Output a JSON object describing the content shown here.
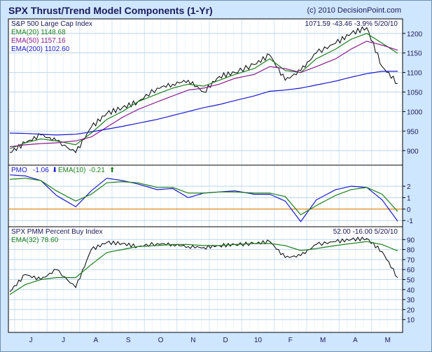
{
  "header": {
    "title": "SPX Thrust/Trend Model Components (1-Yr)",
    "copyright": "(c) 2010 DecisionPoint.com"
  },
  "x_months": [
    "J",
    "J",
    "A",
    "S",
    "O",
    "N",
    "D",
    "10",
    "F",
    "M",
    "A",
    "M"
  ],
  "panels": {
    "price": {
      "name": "S&P 500 Large Cap Index",
      "readout": "1071.59  -43.46  -3.9%  5/20/10",
      "legend": [
        {
          "label": "EMA(20)",
          "value": "1148.68",
          "color": "#1b7f1b"
        },
        {
          "label": "EMA(50)",
          "value": "1157.16",
          "color": "#8a1a8a"
        },
        {
          "label": "EMA(200)",
          "value": "1102.60",
          "color": "#1a1acc"
        }
      ],
      "yticks": [
        "900",
        "950",
        "1000",
        "1050",
        "1100",
        "1150",
        "1200"
      ]
    },
    "pmo": {
      "name": "PMO",
      "value": "-1.06",
      "arrow": "⬇",
      "ema_label": "EMA(10)",
      "ema_value": "-0.21",
      "ema_arrow": "⬆",
      "yticks": [
        "-1",
        "0",
        "1",
        "2"
      ]
    },
    "pmm": {
      "name": "SPX PMM Percent Buy Index",
      "readout": "52.00  -16.00  5/20/10",
      "ema_label": "EMA(32)",
      "ema_value": "78.60",
      "yticks": [
        "10",
        "20",
        "30",
        "40",
        "50",
        "60",
        "70",
        "80",
        "90"
      ]
    }
  },
  "chart_data": [
    {
      "type": "line",
      "title": "S&P 500 Large Cap Index",
      "x": [
        0,
        4,
        8,
        12,
        17,
        21,
        25,
        29,
        33,
        38,
        42,
        46,
        50,
        54,
        58,
        63,
        67,
        71,
        75,
        79,
        84,
        88,
        92,
        96,
        100
      ],
      "ylim": [
        870,
        1230
      ],
      "series": [
        {
          "name": "S&P 500 Large Cap Index",
          "color": "#000000",
          "values": [
            895,
            920,
            940,
            925,
            895,
            960,
            995,
            1010,
            1025,
            1060,
            1070,
            1080,
            1050,
            1090,
            1100,
            1120,
            1145,
            1080,
            1105,
            1150,
            1175,
            1200,
            1215,
            1115,
            1072
          ]
        },
        {
          "name": "EMA(20)",
          "color": "#1b7f1b",
          "values": [
            905,
            920,
            930,
            925,
            915,
            945,
            980,
            1000,
            1025,
            1045,
            1060,
            1070,
            1065,
            1080,
            1095,
            1110,
            1135,
            1105,
            1100,
            1135,
            1160,
            1185,
            1200,
            1175,
            1149
          ]
        },
        {
          "name": "EMA(50)",
          "color": "#8a1a8a",
          "values": [
            910,
            915,
            918,
            920,
            925,
            935,
            960,
            985,
            1005,
            1025,
            1040,
            1055,
            1060,
            1070,
            1085,
            1095,
            1115,
            1110,
            1100,
            1115,
            1135,
            1160,
            1180,
            1170,
            1157
          ]
        },
        {
          "name": "EMA(200)",
          "color": "#1a1acc",
          "values": [
            945,
            944,
            942,
            940,
            942,
            948,
            955,
            962,
            970,
            980,
            990,
            1000,
            1010,
            1018,
            1028,
            1040,
            1052,
            1055,
            1060,
            1068,
            1078,
            1088,
            1097,
            1103,
            1103
          ]
        }
      ]
    },
    {
      "type": "line",
      "title": "PMO",
      "x": [
        0,
        4,
        8,
        12,
        17,
        21,
        25,
        29,
        33,
        38,
        42,
        46,
        50,
        54,
        58,
        63,
        67,
        71,
        75,
        79,
        84,
        88,
        92,
        96,
        100
      ],
      "ylim": [
        -1.3,
        3.6
      ],
      "series": [
        {
          "name": "PMO",
          "color": "#1a1acc",
          "values": [
            3.0,
            2.9,
            2.5,
            1.2,
            0.2,
            1.6,
            2.7,
            2.5,
            2.2,
            1.7,
            1.8,
            1.0,
            1.4,
            1.5,
            1.6,
            1.3,
            1.3,
            0.7,
            -1.1,
            0.8,
            1.7,
            2.0,
            1.9,
            0.8,
            -1.06
          ]
        },
        {
          "name": "EMA(10)",
          "color": "#1b7f1b",
          "values": [
            2.6,
            2.7,
            2.5,
            1.6,
            0.7,
            1.3,
            2.3,
            2.4,
            2.3,
            1.9,
            1.9,
            1.4,
            1.4,
            1.5,
            1.5,
            1.4,
            1.4,
            1.1,
            -0.5,
            0.3,
            1.2,
            1.7,
            1.9,
            1.3,
            -0.21
          ]
        }
      ]
    },
    {
      "type": "line",
      "title": "SPX PMM Percent Buy Index",
      "x": [
        0,
        4,
        8,
        12,
        17,
        21,
        25,
        29,
        33,
        38,
        42,
        46,
        50,
        54,
        58,
        63,
        67,
        71,
        75,
        79,
        84,
        88,
        92,
        96,
        100
      ],
      "ylim": [
        0,
        100
      ],
      "series": [
        {
          "name": "SPX PMM Percent Buy Index",
          "color": "#000000",
          "values": [
            38,
            55,
            50,
            60,
            42,
            80,
            87,
            86,
            83,
            86,
            85,
            83,
            82,
            84,
            85,
            86,
            88,
            72,
            74,
            85,
            88,
            90,
            91,
            78,
            52
          ]
        },
        {
          "name": "EMA(32)",
          "color": "#1b7f1b",
          "values": [
            35,
            45,
            50,
            52,
            52,
            65,
            77,
            80,
            83,
            84,
            85,
            85,
            84,
            84,
            85,
            86,
            86,
            84,
            79,
            81,
            84,
            86,
            88,
            85,
            78.6
          ]
        }
      ]
    }
  ]
}
